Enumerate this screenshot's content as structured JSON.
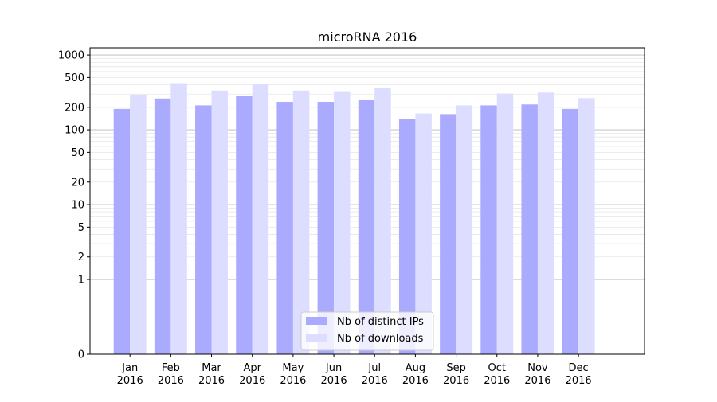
{
  "chart_data": {
    "type": "bar",
    "title": "microRNA 2016",
    "y_scale": "symlog",
    "grid": "horizontal",
    "legend_position": "bottom-center",
    "categories": [
      "Jan\n2016",
      "Feb\n2016",
      "Mar\n2016",
      "Apr\n2016",
      "May\n2016",
      "Jun\n2016",
      "Jul\n2016",
      "Aug\n2016",
      "Sep\n2016",
      "Oct\n2016",
      "Nov\n2016",
      "Dec\n2016"
    ],
    "yticks": [
      0,
      1,
      2,
      5,
      10,
      20,
      50,
      100,
      200,
      500,
      1000
    ],
    "ylim": [
      0,
      1250
    ],
    "series": [
      {
        "name": "Nb of distinct IPs",
        "color": "#aaaaff",
        "values": [
          190,
          262,
          212,
          283,
          236,
          236,
          250,
          140,
          162,
          212,
          218,
          190
        ]
      },
      {
        "name": "Nb of downloads",
        "color": "#ddddff",
        "values": [
          295,
          420,
          335,
          410,
          335,
          328,
          360,
          165,
          212,
          305,
          315,
          265
        ]
      }
    ]
  }
}
